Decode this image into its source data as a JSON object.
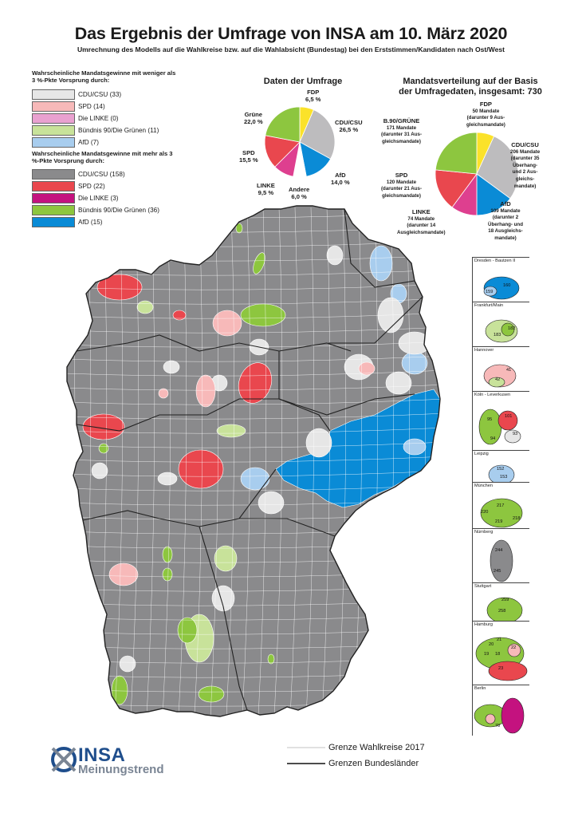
{
  "title": "Das Ergebnis der Umfrage von INSA am 10. März 2020",
  "subtitle": "Umrechnung des Modells auf die Wahlkreise bzw. auf die Wahlabsicht (Bundestag) bei den Erststimmen/Kandidaten nach Ost/West",
  "colors": {
    "cdu_light": "#e6e6e6",
    "spd_light": "#f7b9b9",
    "linke_light": "#e9a1d0",
    "gruene_light": "#c8e29a",
    "afd_light": "#a8cdee",
    "cdu": "#8a8a8c",
    "spd": "#e9474e",
    "linke": "#c4127f",
    "gruene": "#8dc63f",
    "afd": "#0a8bd6",
    "fdp": "#fbe22a",
    "andere": "#ffffff",
    "border": "#1a1a1a"
  },
  "legend": {
    "low_heading": "Wahrscheinliche Mandatsgewinne mit weniger als 3 %-Pkte Vorsprung durch:",
    "low": [
      "CDU/CSU (33)",
      "SPD (14)",
      "Die LINKE (0)",
      "Bündnis 90/Die Grünen (11)",
      "AfD (7)"
    ],
    "high_heading": "Wahrscheinliche Mandatsgewinne mit mehr als 3 %-Pkte Vorsprung durch:",
    "high": [
      "CDU/CSU (158)",
      "SPD (22)",
      "Die LINKE (3)",
      "Bündnis 90/Die Grünen (36)",
      "AfD (15)"
    ]
  },
  "poll_pie": {
    "title": "Daten der Umfrage",
    "slices": [
      {
        "name": "FDP",
        "value": 6.5,
        "label": "6,5 %"
      },
      {
        "name": "CDU/CSU",
        "value": 26.5,
        "label": "26,5 %"
      },
      {
        "name": "AfD",
        "value": 14.0,
        "label": "14,0 %"
      },
      {
        "name": "Andere",
        "value": 6.0,
        "label": "6,0 %"
      },
      {
        "name": "LINKE",
        "value": 9.5,
        "label": "9,5 %"
      },
      {
        "name": "SPD",
        "value": 15.5,
        "label": "15,5 %"
      },
      {
        "name": "Grüne",
        "value": 22.0,
        "label": "22,0 %"
      }
    ]
  },
  "seat_pie": {
    "title_line1": "Mandatsverteilung auf der Basis",
    "title_line2": "der Umfragedaten, insgesamt: 730",
    "slices": [
      {
        "name": "FDP",
        "value": 50,
        "l1": "50 Mandate",
        "l2": "(darunter 9 Aus-",
        "l3": "gleichsmandate)"
      },
      {
        "name": "CDU/CSU",
        "value": 206,
        "l1": "206 Mandate",
        "l2": "(darunter 35",
        "l3": "Überhang-",
        "l4": "und 2 Aus-",
        "l5": "gleichs-",
        "l6": "mandate)"
      },
      {
        "name": "AfD",
        "value": 109,
        "l1": "109 Mandate",
        "l2": "(darunter 2",
        "l3": "Überhang- und",
        "l4": "18 Ausgleichs-",
        "l5": "mandate)"
      },
      {
        "name": "LINKE",
        "value": 74,
        "l1": "74 Mandate",
        "l2": "(darunter 14",
        "l3": "Ausgleichsmandate)"
      },
      {
        "name": "SPD",
        "value": 120,
        "l1": "120 Mandate",
        "l2": "(darunter 21 Aus-",
        "l3": "gleichsmandate)"
      },
      {
        "name": "B.90/GRÜNE",
        "value": 171,
        "l1": "171 Mandate",
        "l2": "(darunter 31 Aus-",
        "l3": "gleichsmandate)"
      }
    ]
  },
  "insets": [
    {
      "title": "Dresden - Bautzen II",
      "labels": [
        "160",
        "159"
      ]
    },
    {
      "title": "Frankfurt/Main",
      "labels": [
        "182",
        "183"
      ]
    },
    {
      "title": "Hannover",
      "labels": [
        "41",
        "42"
      ]
    },
    {
      "title": "Köln - Leverkusen",
      "labels": [
        "95",
        "101",
        "94",
        "93"
      ]
    },
    {
      "title": "Leipzig",
      "labels": [
        "152",
        "153"
      ]
    },
    {
      "title": "München",
      "labels": [
        "217",
        "220",
        "218",
        "219"
      ]
    },
    {
      "title": "Nürnberg",
      "labels": [
        "244",
        "245"
      ]
    },
    {
      "title": "Stuttgart",
      "labels": [
        "259",
        "258"
      ]
    },
    {
      "title": "Hamburg",
      "labels": [
        "20",
        "21",
        "22",
        "19",
        "18",
        "23"
      ]
    },
    {
      "title": "Berlin",
      "labels": [
        "78"
      ]
    }
  ],
  "line_legend": {
    "wk": "Grenze Wahlkreise 2017",
    "bl": "Grenzen Bundesländer"
  },
  "logo": {
    "name": "INSA",
    "sub": "Meinungstrend"
  }
}
